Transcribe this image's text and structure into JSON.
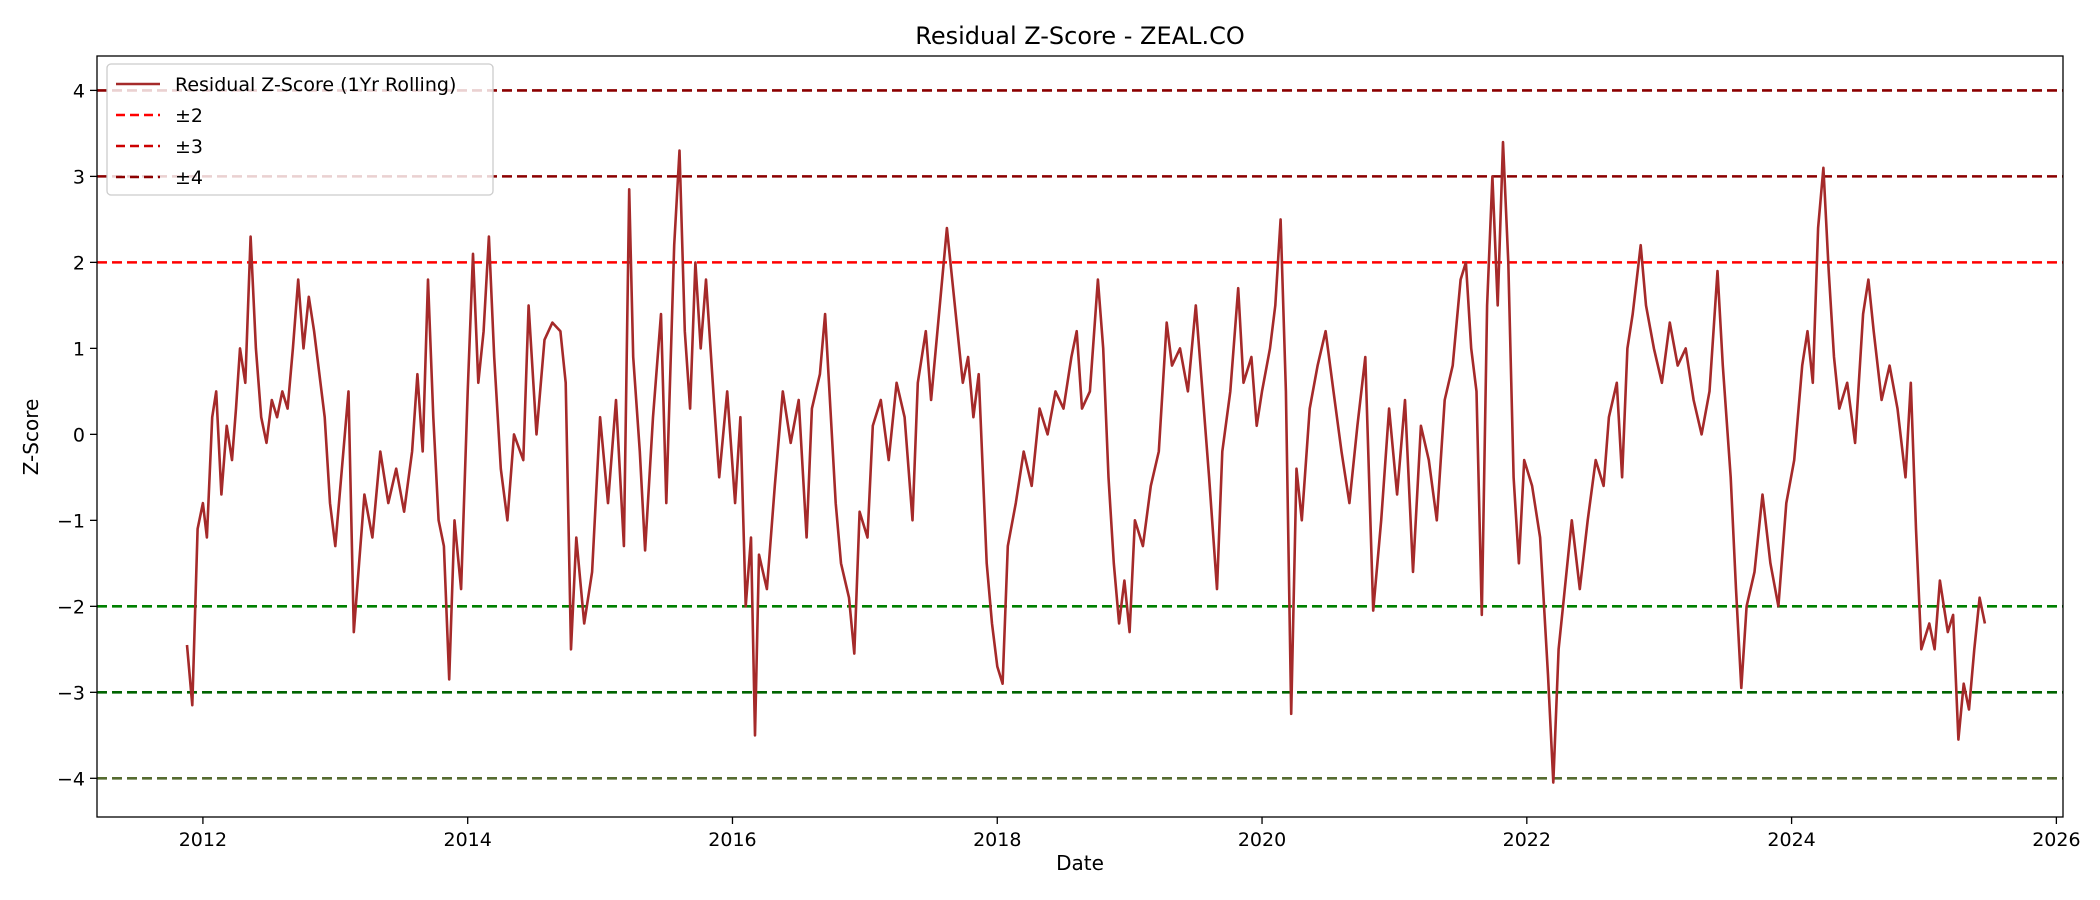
{
  "chart_data": {
    "type": "line",
    "title": "Residual Z-Score - ZEAL.CO",
    "xlabel": "Date",
    "ylabel": "Z-Score",
    "xlim": [
      2011.2,
      2026.05
    ],
    "ylim": [
      -4.45,
      4.4
    ],
    "x_ticks": [
      2012,
      2014,
      2016,
      2018,
      2020,
      2022,
      2024,
      2026
    ],
    "x_tick_labels": [
      "2012",
      "2014",
      "2016",
      "2018",
      "2020",
      "2022",
      "2024",
      "2026"
    ],
    "y_ticks": [
      -4,
      -3,
      -2,
      -1,
      0,
      1,
      2,
      3,
      4
    ],
    "y_tick_labels": [
      "−4",
      "−3",
      "−2",
      "−1",
      "0",
      "1",
      "2",
      "3",
      "4"
    ],
    "grid": false,
    "legend_position": "top-left",
    "legend": [
      {
        "label": "Residual Z-Score (1Yr Rolling)",
        "color": "#a52a2a",
        "style": "solid"
      },
      {
        "label": "±2",
        "color": "#ff0000",
        "style": "dashed"
      },
      {
        "label": "±3",
        "color": "#cc0000",
        "style": "dashed"
      },
      {
        "label": "±4",
        "color": "#8b0000",
        "style": "dashed"
      }
    ],
    "reference_lines": [
      {
        "y": 4,
        "color": "#8b0000"
      },
      {
        "y": 3,
        "color": "#8b0000"
      },
      {
        "y": 2,
        "color": "#ff0000"
      },
      {
        "y": -2,
        "color": "#008000"
      },
      {
        "y": -3,
        "color": "#006400"
      },
      {
        "y": -4,
        "color": "#556b2f"
      }
    ],
    "series": [
      {
        "name": "Residual Z-Score (1Yr Rolling)",
        "color": "#a52a2a",
        "points": [
          [
            2011.88,
            -2.45
          ],
          [
            2011.92,
            -3.15
          ],
          [
            2011.96,
            -1.1
          ],
          [
            2012.0,
            -0.8
          ],
          [
            2012.03,
            -1.2
          ],
          [
            2012.07,
            0.2
          ],
          [
            2012.1,
            0.5
          ],
          [
            2012.14,
            -0.7
          ],
          [
            2012.18,
            0.1
          ],
          [
            2012.22,
            -0.3
          ],
          [
            2012.25,
            0.3
          ],
          [
            2012.28,
            1.0
          ],
          [
            2012.32,
            0.6
          ],
          [
            2012.36,
            2.3
          ],
          [
            2012.4,
            1.0
          ],
          [
            2012.44,
            0.2
          ],
          [
            2012.48,
            -0.1
          ],
          [
            2012.52,
            0.4
          ],
          [
            2012.56,
            0.2
          ],
          [
            2012.6,
            0.5
          ],
          [
            2012.64,
            0.3
          ],
          [
            2012.68,
            1.0
          ],
          [
            2012.72,
            1.8
          ],
          [
            2012.76,
            1.0
          ],
          [
            2012.8,
            1.6
          ],
          [
            2012.84,
            1.2
          ],
          [
            2012.88,
            0.7
          ],
          [
            2012.92,
            0.2
          ],
          [
            2012.96,
            -0.8
          ],
          [
            2013.0,
            -1.3
          ],
          [
            2013.05,
            -0.4
          ],
          [
            2013.1,
            0.5
          ],
          [
            2013.14,
            -2.3
          ],
          [
            2013.18,
            -1.5
          ],
          [
            2013.22,
            -0.7
          ],
          [
            2013.28,
            -1.2
          ],
          [
            2013.34,
            -0.2
          ],
          [
            2013.4,
            -0.8
          ],
          [
            2013.46,
            -0.4
          ],
          [
            2013.52,
            -0.9
          ],
          [
            2013.58,
            -0.2
          ],
          [
            2013.62,
            0.7
          ],
          [
            2013.66,
            -0.2
          ],
          [
            2013.7,
            1.8
          ],
          [
            2013.74,
            0.2
          ],
          [
            2013.78,
            -1.0
          ],
          [
            2013.82,
            -1.3
          ],
          [
            2013.86,
            -2.85
          ],
          [
            2013.9,
            -1.0
          ],
          [
            2013.95,
            -1.8
          ],
          [
            2014.0,
            0.5
          ],
          [
            2014.04,
            2.1
          ],
          [
            2014.08,
            0.6
          ],
          [
            2014.12,
            1.2
          ],
          [
            2014.16,
            2.3
          ],
          [
            2014.2,
            0.9
          ],
          [
            2014.25,
            -0.4
          ],
          [
            2014.3,
            -1.0
          ],
          [
            2014.35,
            0.0
          ],
          [
            2014.42,
            -0.3
          ],
          [
            2014.46,
            1.5
          ],
          [
            2014.52,
            0.0
          ],
          [
            2014.58,
            1.1
          ],
          [
            2014.64,
            1.3
          ],
          [
            2014.7,
            1.2
          ],
          [
            2014.74,
            0.6
          ],
          [
            2014.78,
            -2.5
          ],
          [
            2014.82,
            -1.2
          ],
          [
            2014.88,
            -2.2
          ],
          [
            2014.94,
            -1.6
          ],
          [
            2015.0,
            0.2
          ],
          [
            2015.06,
            -0.8
          ],
          [
            2015.12,
            0.4
          ],
          [
            2015.18,
            -1.3
          ],
          [
            2015.22,
            2.85
          ],
          [
            2015.25,
            0.9
          ],
          [
            2015.3,
            -0.2
          ],
          [
            2015.34,
            -1.35
          ],
          [
            2015.4,
            0.2
          ],
          [
            2015.46,
            1.4
          ],
          [
            2015.5,
            -0.8
          ],
          [
            2015.56,
            2.2
          ],
          [
            2015.6,
            3.3
          ],
          [
            2015.64,
            1.2
          ],
          [
            2015.68,
            0.3
          ],
          [
            2015.72,
            2.0
          ],
          [
            2015.76,
            1.0
          ],
          [
            2015.8,
            1.8
          ],
          [
            2015.86,
            0.4
          ],
          [
            2015.9,
            -0.5
          ],
          [
            2015.96,
            0.5
          ],
          [
            2016.02,
            -0.8
          ],
          [
            2016.06,
            0.2
          ],
          [
            2016.1,
            -2.0
          ],
          [
            2016.14,
            -1.2
          ],
          [
            2016.17,
            -3.5
          ],
          [
            2016.2,
            -1.4
          ],
          [
            2016.26,
            -1.8
          ],
          [
            2016.32,
            -0.6
          ],
          [
            2016.38,
            0.5
          ],
          [
            2016.44,
            -0.1
          ],
          [
            2016.5,
            0.4
          ],
          [
            2016.56,
            -1.2
          ],
          [
            2016.6,
            0.3
          ],
          [
            2016.66,
            0.7
          ],
          [
            2016.7,
            1.4
          ],
          [
            2016.74,
            0.3
          ],
          [
            2016.78,
            -0.8
          ],
          [
            2016.82,
            -1.5
          ],
          [
            2016.88,
            -1.9
          ],
          [
            2016.92,
            -2.55
          ],
          [
            2016.96,
            -0.9
          ],
          [
            2017.02,
            -1.2
          ],
          [
            2017.06,
            0.1
          ],
          [
            2017.12,
            0.4
          ],
          [
            2017.18,
            -0.3
          ],
          [
            2017.24,
            0.6
          ],
          [
            2017.3,
            0.2
          ],
          [
            2017.36,
            -1.0
          ],
          [
            2017.4,
            0.6
          ],
          [
            2017.46,
            1.2
          ],
          [
            2017.5,
            0.4
          ],
          [
            2017.56,
            1.4
          ],
          [
            2017.62,
            2.4
          ],
          [
            2017.66,
            1.8
          ],
          [
            2017.7,
            1.2
          ],
          [
            2017.74,
            0.6
          ],
          [
            2017.78,
            0.9
          ],
          [
            2017.82,
            0.2
          ],
          [
            2017.86,
            0.7
          ],
          [
            2017.92,
            -1.5
          ],
          [
            2017.96,
            -2.2
          ],
          [
            2018.0,
            -2.7
          ],
          [
            2018.04,
            -2.9
          ],
          [
            2018.08,
            -1.3
          ],
          [
            2018.14,
            -0.8
          ],
          [
            2018.2,
            -0.2
          ],
          [
            2018.26,
            -0.6
          ],
          [
            2018.32,
            0.3
          ],
          [
            2018.38,
            0.0
          ],
          [
            2018.44,
            0.5
          ],
          [
            2018.5,
            0.3
          ],
          [
            2018.56,
            0.9
          ],
          [
            2018.6,
            1.2
          ],
          [
            2018.64,
            0.3
          ],
          [
            2018.7,
            0.5
          ],
          [
            2018.76,
            1.8
          ],
          [
            2018.8,
            1.0
          ],
          [
            2018.84,
            -0.5
          ],
          [
            2018.88,
            -1.5
          ],
          [
            2018.92,
            -2.2
          ],
          [
            2018.96,
            -1.7
          ],
          [
            2019.0,
            -2.3
          ],
          [
            2019.04,
            -1.0
          ],
          [
            2019.1,
            -1.3
          ],
          [
            2019.16,
            -0.6
          ],
          [
            2019.22,
            -0.2
          ],
          [
            2019.28,
            1.3
          ],
          [
            2019.32,
            0.8
          ],
          [
            2019.38,
            1.0
          ],
          [
            2019.44,
            0.5
          ],
          [
            2019.5,
            1.5
          ],
          [
            2019.56,
            0.3
          ],
          [
            2019.6,
            -0.5
          ],
          [
            2019.66,
            -1.8
          ],
          [
            2019.7,
            -0.2
          ],
          [
            2019.76,
            0.5
          ],
          [
            2019.82,
            1.7
          ],
          [
            2019.86,
            0.6
          ],
          [
            2019.92,
            0.9
          ],
          [
            2019.96,
            0.1
          ],
          [
            2020.0,
            0.5
          ],
          [
            2020.06,
            1.0
          ],
          [
            2020.1,
            1.5
          ],
          [
            2020.14,
            2.5
          ],
          [
            2020.18,
            0.5
          ],
          [
            2020.22,
            -3.25
          ],
          [
            2020.26,
            -0.4
          ],
          [
            2020.3,
            -1.0
          ],
          [
            2020.36,
            0.3
          ],
          [
            2020.42,
            0.8
          ],
          [
            2020.48,
            1.2
          ],
          [
            2020.54,
            0.5
          ],
          [
            2020.6,
            -0.2
          ],
          [
            2020.66,
            -0.8
          ],
          [
            2020.72,
            0.1
          ],
          [
            2020.78,
            0.9
          ],
          [
            2020.84,
            -2.05
          ],
          [
            2020.9,
            -1.0
          ],
          [
            2020.96,
            0.3
          ],
          [
            2021.02,
            -0.7
          ],
          [
            2021.08,
            0.4
          ],
          [
            2021.14,
            -1.6
          ],
          [
            2021.2,
            0.1
          ],
          [
            2021.26,
            -0.3
          ],
          [
            2021.32,
            -1.0
          ],
          [
            2021.38,
            0.4
          ],
          [
            2021.44,
            0.8
          ],
          [
            2021.5,
            1.8
          ],
          [
            2021.54,
            2.0
          ],
          [
            2021.58,
            1.0
          ],
          [
            2021.62,
            0.5
          ],
          [
            2021.66,
            -2.1
          ],
          [
            2021.7,
            1.5
          ],
          [
            2021.74,
            3.0
          ],
          [
            2021.78,
            1.5
          ],
          [
            2021.82,
            3.4
          ],
          [
            2021.86,
            2.0
          ],
          [
            2021.9,
            -0.5
          ],
          [
            2021.94,
            -1.5
          ],
          [
            2021.98,
            -0.3
          ],
          [
            2022.04,
            -0.6
          ],
          [
            2022.1,
            -1.2
          ],
          [
            2022.16,
            -2.8
          ],
          [
            2022.2,
            -4.05
          ],
          [
            2022.24,
            -2.5
          ],
          [
            2022.28,
            -1.9
          ],
          [
            2022.34,
            -1.0
          ],
          [
            2022.4,
            -1.8
          ],
          [
            2022.46,
            -1.0
          ],
          [
            2022.52,
            -0.3
          ],
          [
            2022.58,
            -0.6
          ],
          [
            2022.62,
            0.2
          ],
          [
            2022.68,
            0.6
          ],
          [
            2022.72,
            -0.5
          ],
          [
            2022.76,
            1.0
          ],
          [
            2022.8,
            1.4
          ],
          [
            2022.86,
            2.2
          ],
          [
            2022.9,
            1.5
          ],
          [
            2022.96,
            1.0
          ],
          [
            2023.02,
            0.6
          ],
          [
            2023.08,
            1.3
          ],
          [
            2023.14,
            0.8
          ],
          [
            2023.2,
            1.0
          ],
          [
            2023.26,
            0.4
          ],
          [
            2023.32,
            0.0
          ],
          [
            2023.38,
            0.5
          ],
          [
            2023.44,
            1.9
          ],
          [
            2023.48,
            0.8
          ],
          [
            2023.54,
            -0.5
          ],
          [
            2023.58,
            -1.8
          ],
          [
            2023.62,
            -2.95
          ],
          [
            2023.66,
            -2.0
          ],
          [
            2023.72,
            -1.6
          ],
          [
            2023.78,
            -0.7
          ],
          [
            2023.84,
            -1.5
          ],
          [
            2023.9,
            -2.0
          ],
          [
            2023.96,
            -0.8
          ],
          [
            2024.02,
            -0.3
          ],
          [
            2024.08,
            0.8
          ],
          [
            2024.12,
            1.2
          ],
          [
            2024.16,
            0.6
          ],
          [
            2024.2,
            2.4
          ],
          [
            2024.24,
            3.1
          ],
          [
            2024.28,
            1.9
          ],
          [
            2024.32,
            0.9
          ],
          [
            2024.36,
            0.3
          ],
          [
            2024.42,
            0.6
          ],
          [
            2024.48,
            -0.1
          ],
          [
            2024.54,
            1.4
          ],
          [
            2024.58,
            1.8
          ],
          [
            2024.62,
            1.2
          ],
          [
            2024.68,
            0.4
          ],
          [
            2024.74,
            0.8
          ],
          [
            2024.8,
            0.3
          ],
          [
            2024.86,
            -0.5
          ],
          [
            2024.9,
            0.6
          ],
          [
            2024.94,
            -1.1
          ],
          [
            2024.98,
            -2.5
          ],
          [
            2025.04,
            -2.2
          ],
          [
            2025.08,
            -2.5
          ],
          [
            2025.12,
            -1.7
          ],
          [
            2025.18,
            -2.3
          ],
          [
            2025.22,
            -2.1
          ],
          [
            2025.26,
            -3.55
          ],
          [
            2025.3,
            -2.9
          ],
          [
            2025.34,
            -3.2
          ],
          [
            2025.38,
            -2.5
          ],
          [
            2025.42,
            -1.9
          ],
          [
            2025.46,
            -2.2
          ]
        ]
      }
    ]
  }
}
